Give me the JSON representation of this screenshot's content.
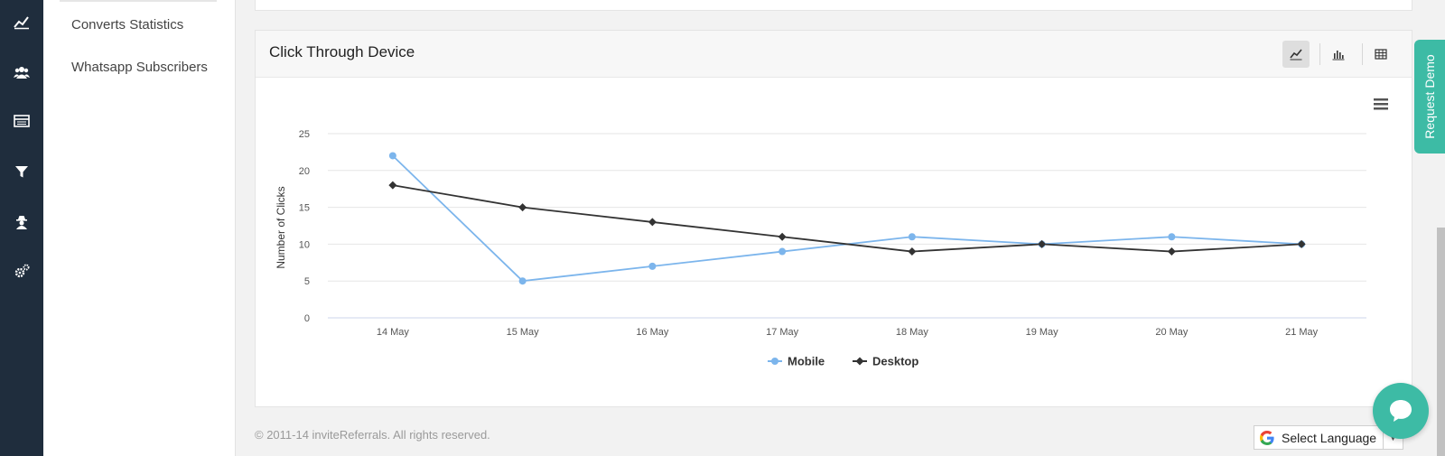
{
  "sidebar": {
    "icons": [
      "line-chart-icon",
      "users-icon",
      "card-icon",
      "filter-icon",
      "user-secret-icon",
      "cogs-icon"
    ]
  },
  "submenu": {
    "items": [
      {
        "label": "Converts Statistics"
      },
      {
        "label": "Whatsapp Subscribers"
      }
    ]
  },
  "panel": {
    "title": "Click Through Device",
    "view_buttons": [
      "line-view",
      "bar-view",
      "table-view"
    ]
  },
  "chart_data": {
    "type": "line",
    "title": "",
    "xlabel": "",
    "ylabel": "Number of Clicks",
    "categories": [
      "14 May",
      "15 May",
      "16 May",
      "17 May",
      "18 May",
      "19 May",
      "20 May",
      "21 May"
    ],
    "ylim": [
      0,
      25
    ],
    "yticks": [
      "0",
      "5",
      "10",
      "15",
      "20",
      "25"
    ],
    "grid": true,
    "legend": "bottom-center",
    "series": [
      {
        "name": "Mobile",
        "color": "#7cb5ec",
        "marker": "circle",
        "values": [
          22,
          5,
          7,
          9,
          11,
          10,
          11,
          10
        ]
      },
      {
        "name": "Desktop",
        "color": "#333333",
        "marker": "diamond",
        "values": [
          18,
          15,
          13,
          11,
          9,
          10,
          9,
          10
        ]
      }
    ]
  },
  "footer": {
    "copyright": "© 2011-14 inviteReferrals. All rights reserved."
  },
  "language": {
    "label": "Select Language",
    "caret": "▼"
  },
  "demo_tab": {
    "label": "Request Demo"
  },
  "colors": {
    "sidebar_bg": "#1f2d3d",
    "accent": "#3dbba5"
  }
}
